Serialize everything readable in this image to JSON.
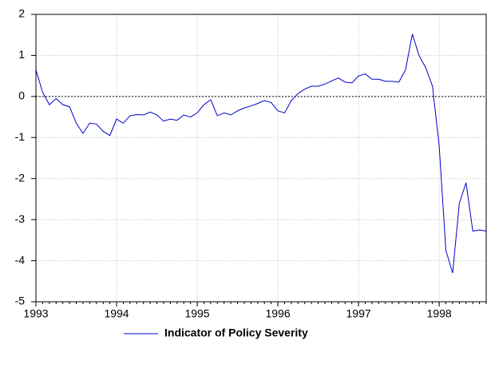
{
  "chart_data": {
    "type": "line",
    "x": [
      1993,
      1993.083,
      1993.167,
      1993.25,
      1993.333,
      1993.417,
      1993.5,
      1993.583,
      1993.667,
      1993.75,
      1993.833,
      1993.917,
      1994,
      1994.083,
      1994.167,
      1994.25,
      1994.333,
      1994.417,
      1994.5,
      1994.583,
      1994.667,
      1994.75,
      1994.833,
      1994.917,
      1995,
      1995.083,
      1995.167,
      1995.25,
      1995.333,
      1995.417,
      1995.5,
      1995.583,
      1995.667,
      1995.75,
      1995.833,
      1995.917,
      1996,
      1996.083,
      1996.167,
      1996.25,
      1996.333,
      1996.417,
      1996.5,
      1996.583,
      1996.667,
      1996.75,
      1996.833,
      1996.917,
      1997,
      1997.083,
      1997.167,
      1997.25,
      1997.333,
      1997.417,
      1997.5,
      1997.583,
      1997.667,
      1997.75,
      1997.833,
      1997.917,
      1998,
      1998.083,
      1998.167,
      1998.25,
      1998.333,
      1998.417,
      1998.5,
      1998.583
    ],
    "series": [
      {
        "name": "Indicator of Policy Severity",
        "color": "#0000cc",
        "values": [
          0.65,
          0.1,
          -0.2,
          -0.05,
          -0.2,
          -0.25,
          -0.65,
          -0.9,
          -0.65,
          -0.67,
          -0.85,
          -0.95,
          -0.55,
          -0.65,
          -0.47,
          -0.44,
          -0.45,
          -0.38,
          -0.45,
          -0.6,
          -0.55,
          -0.58,
          -0.45,
          -0.5,
          -0.4,
          -0.2,
          -0.08,
          -0.47,
          -0.4,
          -0.45,
          -0.35,
          -0.28,
          -0.23,
          -0.17,
          -0.1,
          -0.15,
          -0.35,
          -0.4,
          -0.1,
          0.07,
          0.18,
          0.25,
          0.25,
          0.3,
          0.38,
          0.45,
          0.35,
          0.33,
          0.5,
          0.55,
          0.42,
          0.42,
          0.37,
          0.37,
          0.35,
          0.65,
          1.52,
          1.0,
          0.7,
          0.25,
          -1.2,
          -3.75,
          -4.3,
          -2.6,
          -2.1,
          -3.28,
          -3.25,
          -3.28
        ]
      }
    ],
    "xlim": [
      1993,
      1998.583
    ],
    "xticks": [
      1993,
      1994,
      1995,
      1996,
      1997,
      1998
    ],
    "ylim": [
      -5,
      2
    ],
    "yticks": [
      -5,
      -4,
      -3,
      -2,
      -1,
      0,
      1,
      2
    ],
    "grid": true,
    "reference_line": 0,
    "legend": "bottom"
  }
}
